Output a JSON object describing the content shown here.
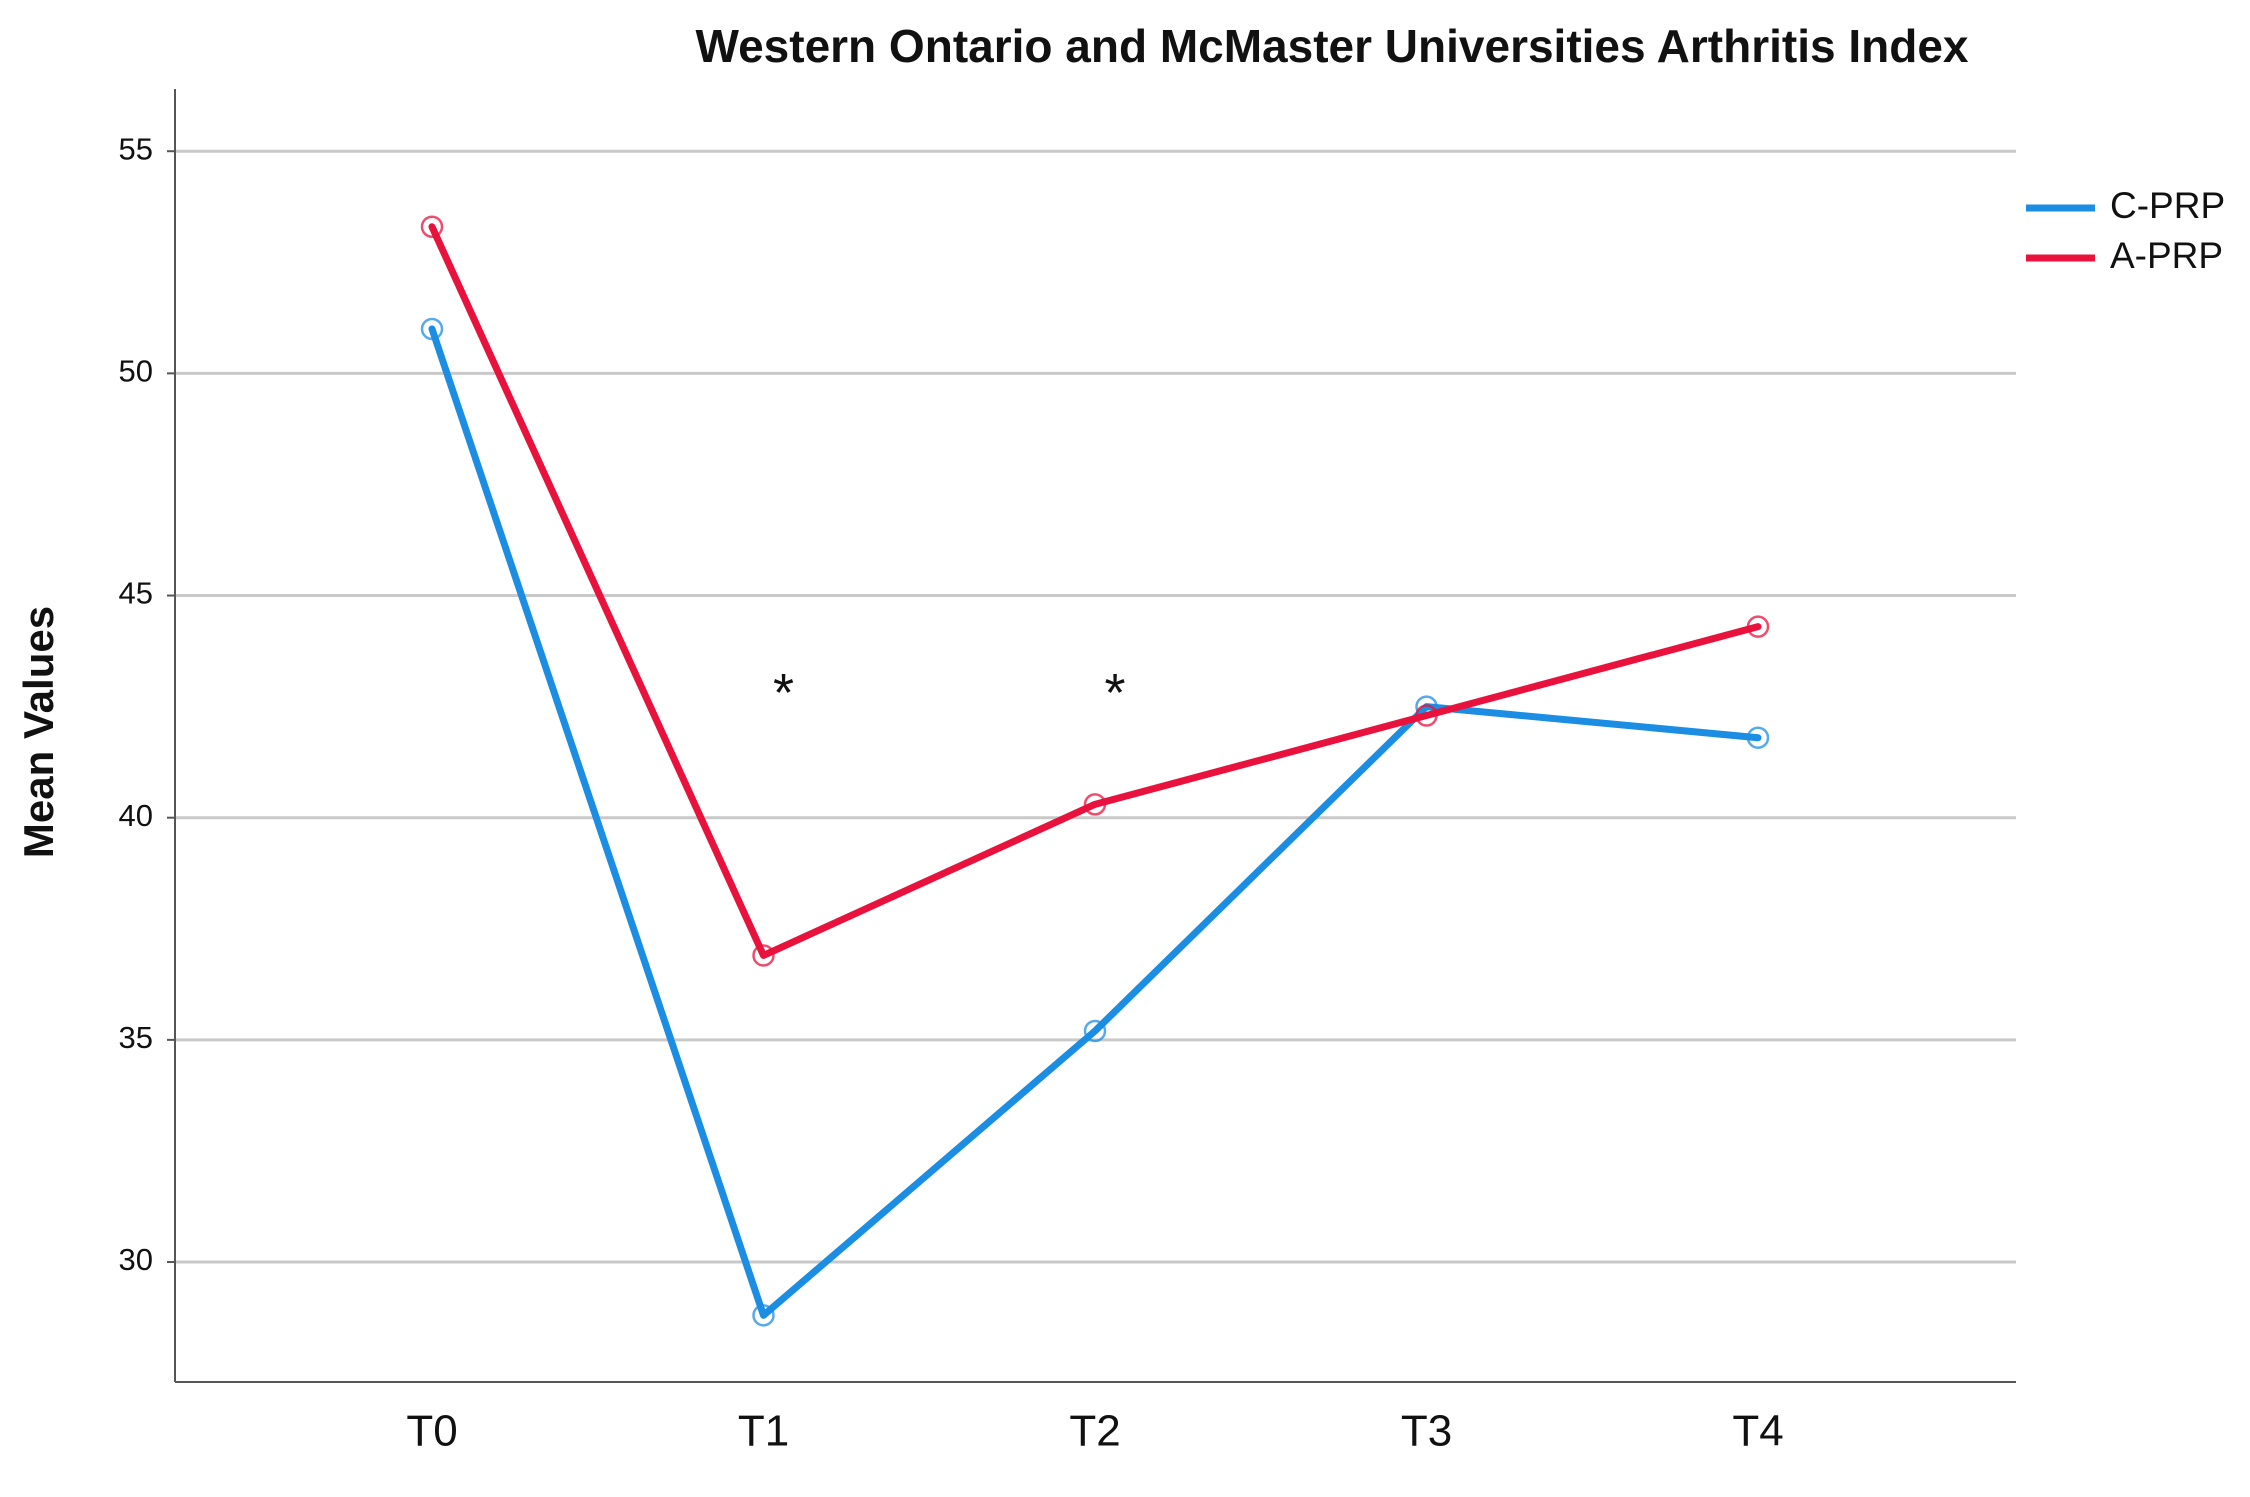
{
  "chart_data": {
    "type": "line",
    "title": "Western Ontario and McMaster Universities Arthritis Index",
    "y_label": "Mean Values",
    "categories": [
      "T0",
      "T1",
      "T2",
      "T3",
      "T4"
    ],
    "series": [
      {
        "name": "C-PRP",
        "color": "#1b8ee3",
        "values": [
          51.0,
          28.8,
          35.2,
          42.5,
          41.8
        ]
      },
      {
        "name": "A-PRP",
        "color": "#e8123c",
        "values": [
          53.3,
          36.9,
          40.3,
          42.3,
          44.3
        ]
      }
    ],
    "annotations": [
      {
        "text": "*",
        "category": "T1",
        "y": 42.9
      },
      {
        "text": "*",
        "category": "T2",
        "y": 42.9
      }
    ],
    "ylim": [
      27.3,
      56.4
    ],
    "yticks": [
      30,
      35,
      40,
      45,
      50,
      55
    ],
    "grid": true,
    "legend": "right"
  }
}
